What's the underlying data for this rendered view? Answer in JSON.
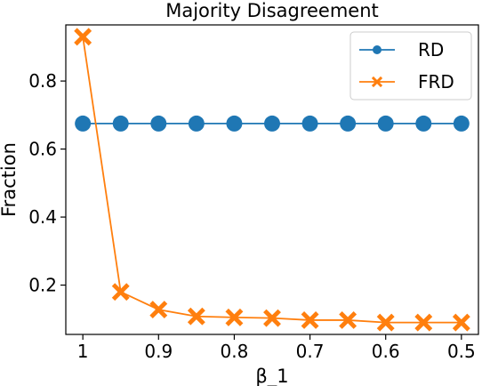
{
  "chart_data": {
    "type": "line",
    "title": "Majority Disagreement",
    "xlabel": "β_1",
    "ylabel": "Fraction",
    "x": [
      1.0,
      0.95,
      0.9,
      0.85,
      0.8,
      0.75,
      0.7,
      0.65,
      0.6,
      0.55,
      0.5
    ],
    "x_reversed": true,
    "xlim": [
      1.0225,
      0.4775
    ],
    "ylim": [
      0.055,
      0.965
    ],
    "xticks": [
      1.0,
      0.9,
      0.8,
      0.7,
      0.6,
      0.5
    ],
    "xtick_labels": [
      "1",
      "0.9",
      "0.8",
      "0.7",
      "0.6",
      "0.5"
    ],
    "yticks": [
      0.2,
      0.4,
      0.6,
      0.8
    ],
    "ytick_labels": [
      "0.2",
      "0.4",
      "0.6",
      "0.8"
    ],
    "grid": false,
    "legend_position": "top-right",
    "series": [
      {
        "name": "RD",
        "color": "#1f77b4",
        "marker": "circle",
        "values": [
          0.675,
          0.675,
          0.675,
          0.675,
          0.675,
          0.675,
          0.675,
          0.675,
          0.675,
          0.675,
          0.675
        ]
      },
      {
        "name": "FRD",
        "color": "#ff7f0e",
        "marker": "x",
        "values": [
          0.93,
          0.18,
          0.128,
          0.108,
          0.105,
          0.103,
          0.097,
          0.097,
          0.09,
          0.09,
          0.09
        ]
      }
    ]
  }
}
